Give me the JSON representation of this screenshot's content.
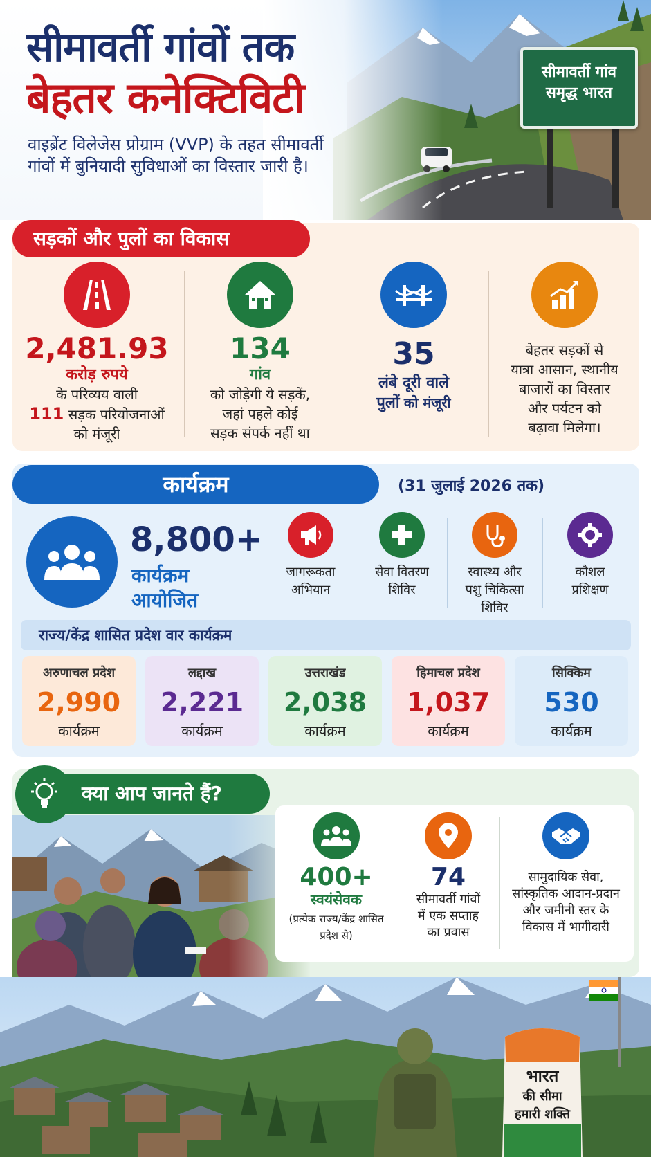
{
  "header": {
    "title_line1": "सीमावर्ती गांवों तक",
    "title_line2": "बेहतर कनेक्टिविटी",
    "subtitle": "वाइब्रेंट विलेजेस प्रोग्राम (VVP) के तहत सीमावर्ती गांवों में बुनियादी सुविधाओं का विस्तार जारी है।",
    "sign_line1": "सीमावर्ती गांव",
    "sign_line2": "समृद्ध भारत"
  },
  "roads": {
    "heading": "सड़कों और पुलों का विकास",
    "col1": {
      "icon": "road-icon",
      "value": "2,481.93",
      "unit": "करोड़ रुपये",
      "line1": "के परिव्यय वाली",
      "count": "111",
      "line2": "सड़क परियोजनाओं",
      "line3": "को मंजूरी"
    },
    "col2": {
      "icon": "house-icon",
      "value": "134",
      "unit": "गांव",
      "line1": "को जोड़ेगी ये सड़कें,",
      "line2": "जहां पहले कोई",
      "line3": "सड़क संपर्क नहीं था"
    },
    "col3": {
      "icon": "bridge-icon",
      "value": "35",
      "line1": "लंबे दूरी वाले",
      "line2_bold": "पुलों",
      "line2_rest": "को मंजूरी"
    },
    "col4": {
      "icon": "growth-chart-icon",
      "line1": "बेहतर सड़कों से",
      "line2": "यात्रा आसान, स्थानीय",
      "line3": "बाजारों का विस्तार",
      "line4": "और पर्यटन को",
      "line5": "बढ़ावा मिलेगा।"
    }
  },
  "programs": {
    "heading": "कार्यक्रम",
    "date_note": "(31 जुलाई 2026 तक)",
    "total": "8,800+",
    "total_label1": "कार्यक्रम",
    "total_label2": "आयोजित",
    "categories": [
      {
        "icon": "megaphone-icon",
        "line1": "जागरूकता",
        "line2": "अभियान",
        "color": "#d8202a"
      },
      {
        "icon": "medical-cross-icon",
        "line1": "सेवा वितरण",
        "line2": "शिविर",
        "color": "#1f7a3f"
      },
      {
        "icon": "stethoscope-icon",
        "line1": "स्वास्थ्य और",
        "line2": "पशु चिकित्सा",
        "line3": "शिविर",
        "color": "#e8650f"
      },
      {
        "icon": "gear-icon",
        "line1": "कौशल",
        "line2": "प्रशिक्षण",
        "color": "#5b2a91"
      }
    ],
    "state_heading": "राज्य/केंद्र शासित प्रदेश वार कार्यक्रम",
    "states": [
      {
        "name": "अरुणाचल प्रदेश",
        "value": "2,990",
        "unit": "कार्यक्रम",
        "color": "#e8650f",
        "bg": "#fde9d9"
      },
      {
        "name": "लद्दाख",
        "value": "2,221",
        "unit": "कार्यक्रम",
        "color": "#5b2a91",
        "bg": "#ece3f6"
      },
      {
        "name": "उत्तराखंड",
        "value": "2,038",
        "unit": "कार्यक्रम",
        "color": "#1f7a3f",
        "bg": "#e0f2e1"
      },
      {
        "name": "हिमाचल प्रदेश",
        "value": "1,037",
        "unit": "कार्यक्रम",
        "color": "#c4161c",
        "bg": "#fde2e2"
      },
      {
        "name": "सिक्किम",
        "value": "530",
        "unit": "कार्यक्रम",
        "color": "#1565c0",
        "bg": "#dcebf9"
      }
    ]
  },
  "facts": {
    "heading": "क्या आप जानते हैं?",
    "item1": {
      "icon": "group-icon",
      "value": "400+",
      "label": "स्वयंसेवक",
      "note1": "(प्रत्येक राज्य/केंद्र शासित",
      "note2": "प्रदेश से)"
    },
    "item2": {
      "icon": "location-pin-icon",
      "value": "74",
      "line1": "सीमावर्ती गांवों",
      "line2": "में एक सप्ताह",
      "line3": "का प्रवास"
    },
    "item3": {
      "icon": "handshake-icon",
      "line1": "सामुदायिक सेवा,",
      "line2": "सांस्कृतिक आदान-प्रदान",
      "line3": "और जमीनी स्तर के",
      "line4": "विकास में भागीदारी"
    }
  },
  "border": {
    "pillar_line1": "भारत",
    "pillar_line2": "की सीमा",
    "pillar_line3": "हमारी शक्ति"
  },
  "colors": {
    "navy": "#1b2f6b",
    "red": "#c4161c",
    "blue": "#1565c0",
    "green": "#1f7a3f",
    "orange": "#e8650f",
    "purple": "#5b2a91"
  }
}
